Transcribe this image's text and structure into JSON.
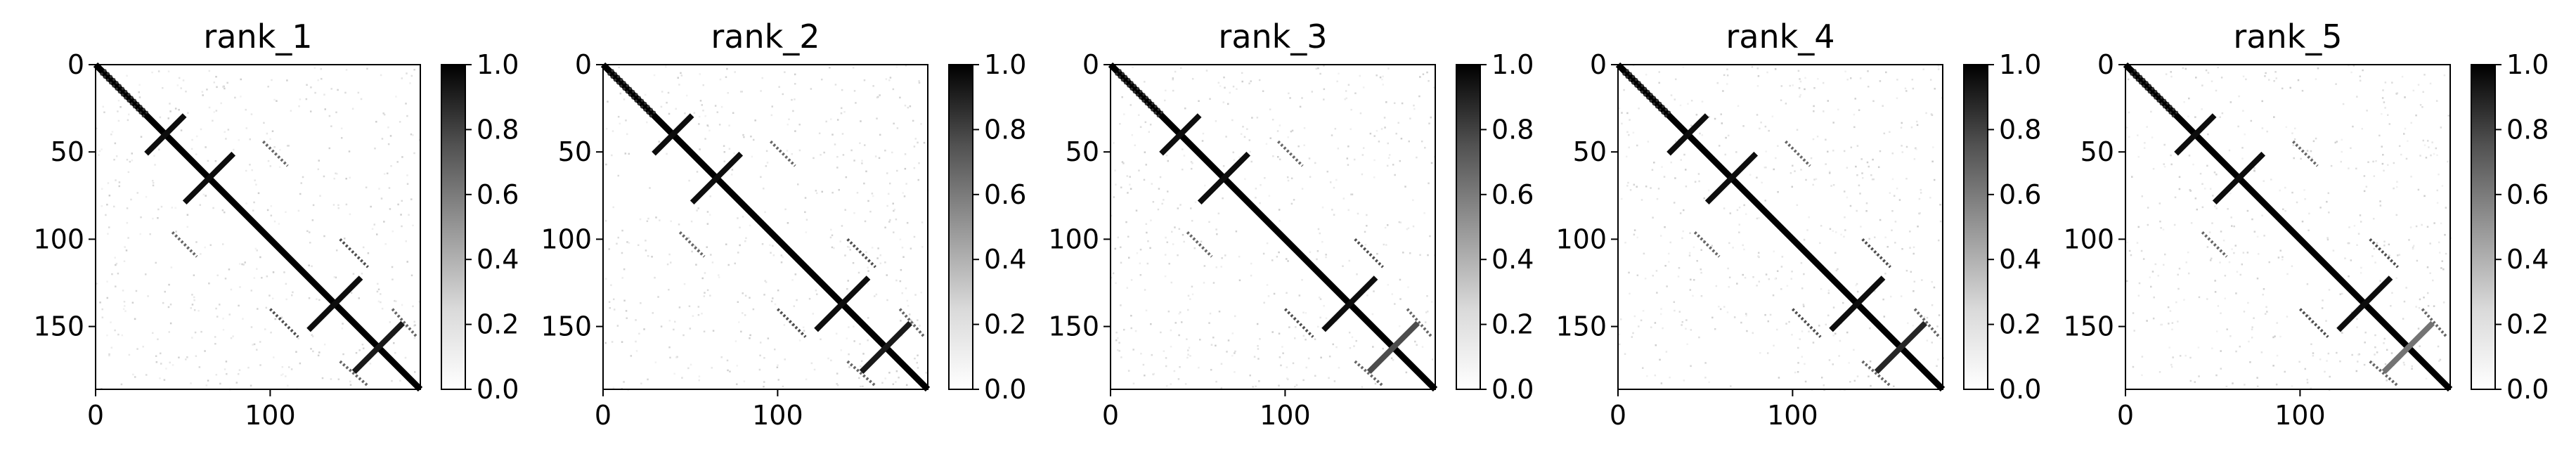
{
  "chart_data": [
    {
      "type": "heatmap",
      "title": "rank_1",
      "xticks": [
        0,
        100
      ],
      "yticks": [
        0,
        50,
        100,
        150
      ],
      "xlim": [
        0,
        186
      ],
      "ylim": [
        186,
        0
      ],
      "colorbar": {
        "min": 0.0,
        "max": 1.0,
        "ticks": [
          "0.0",
          "0.2",
          "0.4",
          "0.6",
          "0.8",
          "1.0"
        ],
        "colormap": "Greys"
      },
      "matrix_size": 186,
      "contacts": {
        "diagonal": [
          {
            "from": 0,
            "to": 186,
            "value": 1.0
          }
        ],
        "antidiagonal_strands": [
          {
            "center": [
              40,
              40
            ],
            "half_length": 11,
            "value": 0.95
          },
          {
            "center": [
              65,
              65
            ],
            "half_length": 14,
            "value": 0.95
          },
          {
            "center": [
              137,
              137
            ],
            "half_length": 15,
            "value": 0.95
          },
          {
            "center": [
              162,
              162
            ],
            "half_length": 14,
            "value": 0.9
          }
        ],
        "parallel_strands": [
          {
            "rows": [
              3,
              28
            ],
            "cols": [
              5,
              30
            ],
            "value": 0.8
          },
          {
            "rows": [
              44,
              58
            ],
            "cols": [
              96,
              110
            ],
            "value": 0.6
          },
          {
            "rows": [
              100,
              116
            ],
            "cols": [
              140,
              156
            ],
            "value": 0.7
          },
          {
            "rows": [
              140,
              156
            ],
            "cols": [
              170,
              184
            ],
            "value": 0.6
          }
        ]
      }
    },
    {
      "type": "heatmap",
      "title": "rank_2",
      "xticks": [
        0,
        100
      ],
      "yticks": [
        0,
        50,
        100,
        150
      ],
      "xlim": [
        0,
        186
      ],
      "ylim": [
        186,
        0
      ],
      "colorbar": {
        "min": 0.0,
        "max": 1.0,
        "ticks": [
          "0.0",
          "0.2",
          "0.4",
          "0.6",
          "0.8",
          "1.0"
        ],
        "colormap": "Greys"
      },
      "matrix_size": 186,
      "contacts": {
        "diagonal": [
          {
            "from": 0,
            "to": 186,
            "value": 1.0
          }
        ],
        "antidiagonal_strands": [
          {
            "center": [
              40,
              40
            ],
            "half_length": 11,
            "value": 0.95
          },
          {
            "center": [
              65,
              65
            ],
            "half_length": 14,
            "value": 0.95
          },
          {
            "center": [
              137,
              137
            ],
            "half_length": 15,
            "value": 0.95
          },
          {
            "center": [
              162,
              162
            ],
            "half_length": 14,
            "value": 0.9
          }
        ],
        "parallel_strands": [
          {
            "rows": [
              3,
              28
            ],
            "cols": [
              5,
              30
            ],
            "value": 0.8
          },
          {
            "rows": [
              44,
              58
            ],
            "cols": [
              96,
              110
            ],
            "value": 0.6
          },
          {
            "rows": [
              100,
              116
            ],
            "cols": [
              140,
              156
            ],
            "value": 0.7
          },
          {
            "rows": [
              140,
              156
            ],
            "cols": [
              170,
              184
            ],
            "value": 0.6
          }
        ]
      }
    },
    {
      "type": "heatmap",
      "title": "rank_3",
      "xticks": [
        0,
        100
      ],
      "yticks": [
        0,
        50,
        100,
        150
      ],
      "xlim": [
        0,
        186
      ],
      "ylim": [
        186,
        0
      ],
      "colorbar": {
        "min": 0.0,
        "max": 1.0,
        "ticks": [
          "0.0",
          "0.2",
          "0.4",
          "0.6",
          "0.8",
          "1.0"
        ],
        "colormap": "Greys"
      },
      "matrix_size": 186,
      "contacts": {
        "diagonal": [
          {
            "from": 0,
            "to": 186,
            "value": 1.0
          }
        ],
        "antidiagonal_strands": [
          {
            "center": [
              40,
              40
            ],
            "half_length": 11,
            "value": 0.95
          },
          {
            "center": [
              65,
              65
            ],
            "half_length": 14,
            "value": 0.95
          },
          {
            "center": [
              137,
              137
            ],
            "half_length": 15,
            "value": 0.95
          },
          {
            "center": [
              162,
              162
            ],
            "half_length": 14,
            "value": 0.7
          }
        ],
        "parallel_strands": [
          {
            "rows": [
              3,
              28
            ],
            "cols": [
              5,
              30
            ],
            "value": 0.8
          },
          {
            "rows": [
              44,
              58
            ],
            "cols": [
              96,
              110
            ],
            "value": 0.6
          },
          {
            "rows": [
              100,
              116
            ],
            "cols": [
              140,
              156
            ],
            "value": 0.7
          },
          {
            "rows": [
              140,
              156
            ],
            "cols": [
              170,
              184
            ],
            "value": 0.6
          }
        ]
      }
    },
    {
      "type": "heatmap",
      "title": "rank_4",
      "xticks": [
        0,
        100
      ],
      "yticks": [
        0,
        50,
        100,
        150
      ],
      "xlim": [
        0,
        186
      ],
      "ylim": [
        186,
        0
      ],
      "colorbar": {
        "min": 0.0,
        "max": 1.0,
        "ticks": [
          "0.0",
          "0.2",
          "0.4",
          "0.6",
          "0.8",
          "1.0"
        ],
        "colormap": "Greys"
      },
      "matrix_size": 186,
      "contacts": {
        "diagonal": [
          {
            "from": 0,
            "to": 186,
            "value": 1.0
          }
        ],
        "antidiagonal_strands": [
          {
            "center": [
              40,
              40
            ],
            "half_length": 11,
            "value": 0.95
          },
          {
            "center": [
              65,
              65
            ],
            "half_length": 14,
            "value": 0.95
          },
          {
            "center": [
              137,
              137
            ],
            "half_length": 15,
            "value": 0.95
          },
          {
            "center": [
              162,
              162
            ],
            "half_length": 14,
            "value": 0.85
          }
        ],
        "parallel_strands": [
          {
            "rows": [
              3,
              28
            ],
            "cols": [
              5,
              30
            ],
            "value": 0.8
          },
          {
            "rows": [
              44,
              58
            ],
            "cols": [
              96,
              110
            ],
            "value": 0.6
          },
          {
            "rows": [
              100,
              116
            ],
            "cols": [
              140,
              156
            ],
            "value": 0.7
          },
          {
            "rows": [
              140,
              156
            ],
            "cols": [
              170,
              184
            ],
            "value": 0.6
          }
        ]
      }
    },
    {
      "type": "heatmap",
      "title": "rank_5",
      "xticks": [
        0,
        100
      ],
      "yticks": [
        0,
        50,
        100,
        150
      ],
      "xlim": [
        0,
        186
      ],
      "ylim": [
        186,
        0
      ],
      "colorbar": {
        "min": 0.0,
        "max": 1.0,
        "ticks": [
          "0.0",
          "0.2",
          "0.4",
          "0.6",
          "0.8",
          "1.0"
        ],
        "colormap": "Greys"
      },
      "matrix_size": 186,
      "contacts": {
        "diagonal": [
          {
            "from": 0,
            "to": 186,
            "value": 1.0
          }
        ],
        "antidiagonal_strands": [
          {
            "center": [
              40,
              40
            ],
            "half_length": 11,
            "value": 0.95
          },
          {
            "center": [
              65,
              65
            ],
            "half_length": 14,
            "value": 0.95
          },
          {
            "center": [
              137,
              137
            ],
            "half_length": 15,
            "value": 0.95
          },
          {
            "center": [
              162,
              162
            ],
            "half_length": 14,
            "value": 0.55
          }
        ],
        "parallel_strands": [
          {
            "rows": [
              3,
              28
            ],
            "cols": [
              5,
              30
            ],
            "value": 0.8
          },
          {
            "rows": [
              44,
              58
            ],
            "cols": [
              96,
              110
            ],
            "value": 0.6
          },
          {
            "rows": [
              100,
              116
            ],
            "cols": [
              140,
              156
            ],
            "value": 0.7
          },
          {
            "rows": [
              140,
              156
            ],
            "cols": [
              170,
              184
            ],
            "value": 0.6
          }
        ]
      }
    }
  ]
}
